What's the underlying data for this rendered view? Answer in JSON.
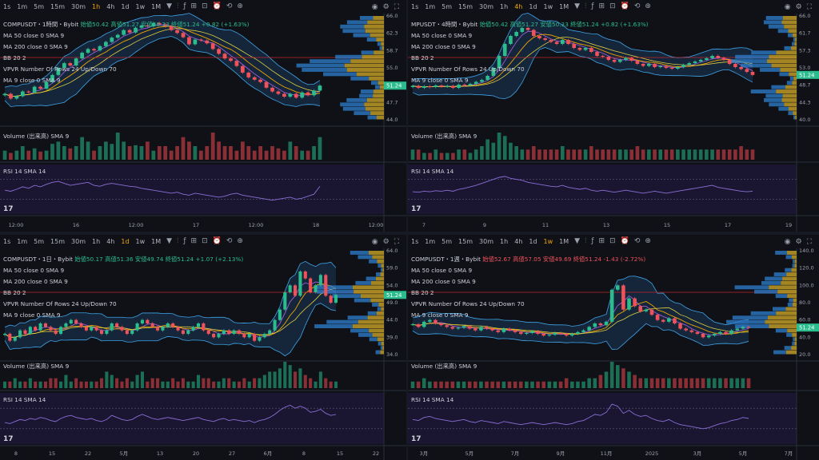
{
  "toolbar": {
    "timeframes": [
      "1s",
      "1m",
      "5m",
      "15m",
      "30m",
      "1h",
      "4h",
      "1d",
      "1w",
      "1M"
    ],
    "dropdown": "▼"
  },
  "indicators": {
    "ma50": "MA 50 close 0 SMA 9",
    "ma200": "MA 200 close 0 SMA 9",
    "bb": "BB 20 2",
    "vpvr": "VPVR Number Of Rows 24 Up/Down 70",
    "ma9": "MA 9 close 0 SMA 9",
    "volume": "Volume (出来高) SMA 9",
    "rsi": "RSI 14 SMA 14"
  },
  "colors": {
    "up": "#2bbd8e",
    "down": "#f0525b",
    "rsi": "#8a6fd6",
    "bb": "#3fa5e8",
    "vpvr_up": "#2d7fd0",
    "vpvr_down": "#c9a227",
    "accent": "#f0a500"
  },
  "panels": [
    {
      "id": "p1",
      "active_tf": "1h",
      "symbol": "COMPUSDT・1時間・Bybit",
      "ohlc": "始値50.42 高値51.27 安値50.33 終値51.24 +0.82 (+1.63%)",
      "xlabels": [
        "12:00",
        "16",
        "12:00",
        "17",
        "12:00",
        "18",
        "12:00"
      ],
      "price": "51.24",
      "chart_data": {
        "type": "candlestick",
        "y_range": [
          44,
          66
        ],
        "closes": [
          49.5,
          48.5,
          49,
          50,
          49.8,
          51,
          50.6,
          52,
          53.5,
          55,
          56,
          55.5,
          57,
          58.2,
          59,
          58.7,
          59.6,
          60.5,
          61.4,
          62,
          63,
          62.5,
          63.5,
          64,
          63.8,
          64.5,
          64.2,
          63.8,
          63,
          62.4,
          61.5,
          60,
          61,
          60.8,
          60.2,
          59,
          58,
          57,
          56.5,
          55.4,
          54,
          53,
          52.5,
          52,
          50.8,
          50,
          49.5,
          48.9,
          49.5,
          48.7,
          49.8,
          49.2,
          50.2,
          51.24
        ],
        "volume": [
          2,
          1.5,
          2,
          3,
          2,
          2.5,
          1.8,
          2,
          3.5,
          4,
          3,
          2.5,
          3,
          5,
          4,
          2,
          3,
          4,
          3.5,
          6,
          4,
          3,
          3.2,
          3,
          4,
          2,
          3,
          3,
          2,
          3,
          5,
          4,
          3,
          2,
          3,
          6,
          4,
          3,
          3,
          2,
          4,
          3,
          2,
          3,
          2,
          3,
          2.5,
          2,
          4,
          3,
          2,
          2,
          3,
          5
        ],
        "rsi": [
          48,
          46,
          50,
          55,
          52,
          58,
          55,
          60,
          64,
          66,
          62,
          58,
          60,
          62,
          64,
          58,
          56,
          60,
          62,
          60,
          58,
          56,
          55,
          52,
          50,
          48,
          46,
          44,
          42,
          44,
          40,
          38,
          42,
          40,
          38,
          36,
          34,
          36,
          40,
          42,
          38,
          36,
          34,
          32,
          30,
          28,
          30,
          32,
          34,
          30,
          32,
          36,
          40,
          56
        ]
      }
    },
    {
      "id": "p2",
      "active_tf": "4h",
      "symbol": "MPUSDT・4時間・Bybit",
      "ohlc": "始値50.42 高値51.27 安値50.33 終値51.24 +0.82 (+1.63%)",
      "xlabels": [
        "7",
        "9",
        "11",
        "13",
        "15",
        "17",
        "19"
      ],
      "price": "51.24",
      "chart_data": {
        "type": "candlestick",
        "y_range": [
          40,
          66
        ],
        "closes": [
          48.5,
          48,
          48.4,
          48.2,
          48.6,
          48.3,
          48.5,
          48,
          48.8,
          48.6,
          49,
          49.5,
          50,
          51,
          53,
          56,
          59,
          61,
          62,
          63,
          62.5,
          61,
          60.4,
          60,
          59.5,
          59,
          60,
          59,
          58,
          57.5,
          58,
          57,
          56,
          55.8,
          55,
          54.5,
          55,
          55.5,
          54.8,
          54,
          53.5,
          54,
          53.2,
          53.4,
          53,
          52.8,
          53.2,
          53.8,
          54.2,
          54.6,
          55,
          55.4,
          56,
          55.5,
          55,
          54,
          53.2,
          52.7,
          52,
          51.24
        ],
        "volume": [
          3,
          3,
          2,
          2,
          3,
          2,
          2,
          2,
          3,
          3,
          2,
          3,
          4,
          6,
          5,
          8,
          7,
          5,
          4,
          3,
          3,
          4,
          3,
          3,
          3,
          3,
          4,
          3,
          3,
          3,
          3,
          4,
          3,
          3,
          3,
          3,
          3,
          3,
          3,
          4,
          3,
          3,
          3,
          3,
          3,
          3,
          3,
          3,
          3,
          3,
          3,
          3,
          3,
          3,
          3,
          3,
          3,
          4,
          3,
          3
        ],
        "rsi": [
          45,
          44,
          46,
          45,
          47,
          46,
          48,
          46,
          50,
          52,
          55,
          58,
          62,
          66,
          70,
          74,
          76,
          72,
          70,
          68,
          64,
          62,
          60,
          58,
          56,
          55,
          58,
          54,
          52,
          50,
          52,
          48,
          46,
          48,
          46,
          44,
          46,
          48,
          46,
          44,
          42,
          44,
          46,
          44,
          42,
          44,
          46,
          48,
          50,
          52,
          54,
          56,
          58,
          54,
          52,
          50,
          48,
          46,
          45,
          46
        ]
      }
    },
    {
      "id": "p3",
      "active_tf": "1d",
      "symbol": "COMPUSDT・1日・Bybit",
      "ohlc": "始値50.17 高値51.36 安値49.74 終値51.24 +1.07 (+2.13%)",
      "xlabels": [
        "8",
        "15",
        "22",
        "5月",
        "13",
        "20",
        "27",
        "6月",
        "8",
        "15",
        "22"
      ],
      "price": "51.24",
      "chart_data": {
        "type": "candlestick",
        "y_range": [
          34,
          64
        ],
        "closes": [
          40,
          38,
          39,
          41,
          40,
          42,
          41,
          43,
          42,
          41,
          40,
          42,
          43,
          44,
          43,
          42,
          41,
          42,
          41,
          40,
          41,
          43,
          42,
          41,
          40,
          41,
          43,
          44,
          43,
          42,
          41,
          42,
          43,
          42,
          41,
          40,
          41,
          42,
          43,
          41,
          40,
          39,
          40,
          41,
          40,
          41,
          40,
          39,
          40,
          38,
          39,
          40,
          41,
          44,
          47,
          52,
          54,
          51,
          58,
          56,
          52,
          54,
          57,
          51,
          49,
          51.24
        ],
        "volume": [
          2,
          2,
          3,
          2,
          2,
          3,
          2,
          2,
          2,
          3,
          3,
          2,
          4,
          2,
          3,
          2,
          2,
          2,
          2,
          3,
          5,
          4,
          3,
          2,
          3,
          2,
          4,
          5,
          2,
          3,
          3,
          2,
          2,
          3,
          2,
          3,
          2,
          2,
          4,
          3,
          3,
          2,
          2,
          3,
          3,
          2,
          2,
          3,
          2,
          3,
          3,
          4,
          5,
          5,
          6,
          8,
          7,
          5,
          6,
          4,
          3,
          2,
          5,
          3,
          2,
          2
        ],
        "rsi": [
          42,
          40,
          44,
          48,
          46,
          50,
          48,
          52,
          50,
          46,
          44,
          50,
          54,
          56,
          52,
          50,
          48,
          50,
          46,
          44,
          48,
          56,
          52,
          48,
          46,
          48,
          54,
          58,
          54,
          50,
          48,
          50,
          52,
          50,
          48,
          46,
          48,
          50,
          52,
          48,
          46,
          44,
          48,
          50,
          46,
          48,
          46,
          44,
          46,
          42,
          46,
          48,
          52,
          58,
          66,
          72,
          76,
          70,
          74,
          70,
          62,
          64,
          68,
          60,
          56,
          58
        ]
      }
    },
    {
      "id": "p4",
      "active_tf": "1w",
      "symbol": "COMPUSDT・1週・Bybit",
      "ohlc": "始値52.67 高値57.05 安値49.69 終値51.24 -1.43 (-2.72%)",
      "xlabels": [
        "3月",
        "5月",
        "7月",
        "9月",
        "11月",
        "2025",
        "3月",
        "5月",
        "7月"
      ],
      "price": "51.24",
      "chart_data": {
        "type": "candlestick",
        "y_range": [
          20,
          140
        ],
        "closes": [
          55,
          52,
          58,
          60,
          56,
          54,
          52,
          50,
          51,
          53,
          50,
          48,
          52,
          50,
          48,
          46,
          50,
          48,
          46,
          44,
          45,
          47,
          44,
          42,
          43,
          45,
          44,
          42,
          44,
          46,
          48,
          52,
          56,
          54,
          58,
          95,
          100,
          72,
          85,
          76,
          70,
          72,
          66,
          60,
          58,
          62,
          56,
          50,
          48,
          46,
          44,
          40,
          42,
          44,
          46,
          44,
          48,
          50,
          52,
          51.24
        ],
        "volume": [
          2,
          2,
          3,
          2,
          2,
          2,
          2,
          2,
          2,
          2,
          2,
          2,
          2,
          2,
          2,
          2,
          2,
          2,
          2,
          2,
          2,
          2,
          2,
          2,
          2,
          2,
          2,
          3,
          2,
          2,
          2,
          3,
          3,
          4,
          5,
          8,
          7,
          6,
          5,
          4,
          3,
          3,
          3,
          3,
          3,
          3,
          3,
          3,
          3,
          3,
          3,
          3,
          3,
          3,
          3,
          3,
          3,
          3,
          3,
          3
        ],
        "rsi": [
          48,
          46,
          52,
          54,
          50,
          48,
          46,
          44,
          46,
          48,
          44,
          42,
          46,
          44,
          42,
          40,
          44,
          42,
          40,
          38,
          40,
          42,
          40,
          38,
          40,
          42,
          40,
          38,
          40,
          44,
          46,
          52,
          58,
          56,
          62,
          78,
          74,
          60,
          66,
          58,
          54,
          56,
          50,
          46,
          44,
          48,
          42,
          38,
          36,
          34,
          32,
          30,
          32,
          36,
          40,
          42,
          46,
          48,
          52,
          50
        ]
      }
    }
  ]
}
